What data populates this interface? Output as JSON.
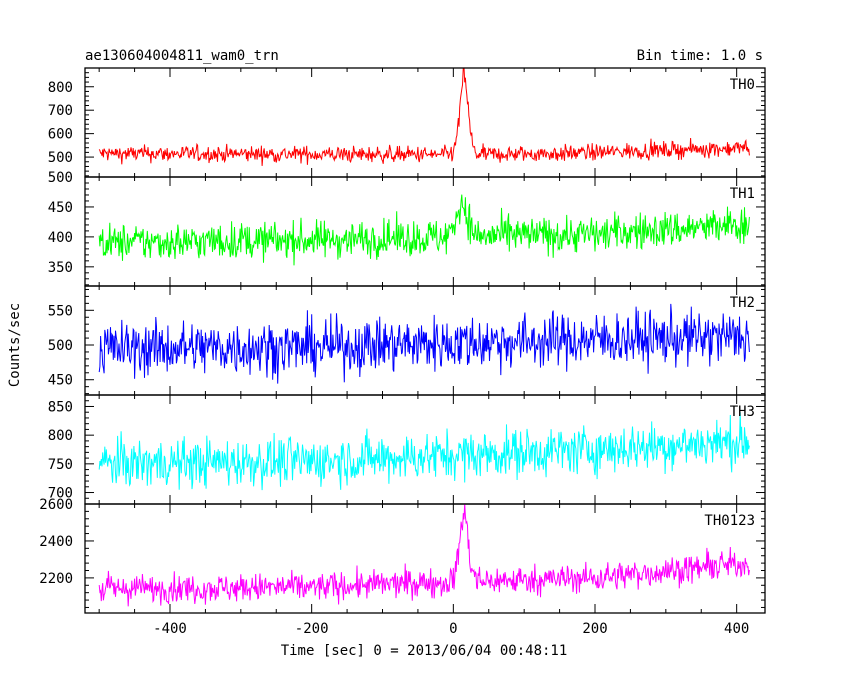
{
  "chart_data": {
    "type": "line",
    "title": "ae130604004811_wam0_trn",
    "subtitle": "Bin time: 1.0 s",
    "xlabel": "Time [sec] 0 = 2013/06/04 00:48:11",
    "ylabel": "Counts/sec",
    "xlim": [
      -520,
      440
    ],
    "x_ticks": [
      -400,
      -200,
      0,
      200,
      400
    ],
    "x_range": [
      -500,
      418
    ],
    "panels": [
      {
        "name": "TH0",
        "color": "#ff0000",
        "ylim": [
          415,
          880
        ],
        "y_ticks": [
          500,
          600,
          700,
          800
        ],
        "baseline": [
          [
            -500,
            515
          ],
          [
            -200,
            512
          ],
          [
            0,
            510
          ],
          [
            150,
            515
          ],
          [
            250,
            525
          ],
          [
            418,
            540
          ]
        ],
        "noise": 25,
        "spike": {
          "x": 15,
          "peak": 880,
          "width": 6
        }
      },
      {
        "name": "TH1",
        "color": "#00ff00",
        "ylim": [
          318,
          500
        ],
        "y_ticks": [
          350,
          400,
          450,
          500
        ],
        "baseline": [
          [
            -500,
            390
          ],
          [
            -200,
            395
          ],
          [
            0,
            400
          ],
          [
            200,
            405
          ],
          [
            418,
            420
          ]
        ],
        "noise": 22,
        "spike": {
          "x": 12,
          "peak": 465,
          "width": 8
        }
      },
      {
        "name": "TH2",
        "color": "#0000ff",
        "ylim": [
          428,
          585
        ],
        "y_ticks": [
          450,
          500,
          550
        ],
        "baseline": [
          [
            -500,
            495
          ],
          [
            -200,
            497
          ],
          [
            0,
            503
          ],
          [
            200,
            508
          ],
          [
            418,
            512
          ]
        ],
        "noise": 28,
        "spike": {
          "x": 0,
          "peak": 0,
          "width": 0
        }
      },
      {
        "name": "TH3",
        "color": "#00ffff",
        "ylim": [
          680,
          870
        ],
        "y_ticks": [
          700,
          750,
          800,
          850
        ],
        "baseline": [
          [
            -500,
            750
          ],
          [
            -200,
            755
          ],
          [
            0,
            765
          ],
          [
            200,
            775
          ],
          [
            418,
            790
          ]
        ],
        "noise": 30,
        "spike": {
          "x": 0,
          "peak": 0,
          "width": 0
        }
      },
      {
        "name": "TH0123",
        "color": "#ff00ff",
        "ylim": [
          2010,
          2600
        ],
        "y_ticks": [
          2200,
          2400,
          2600
        ],
        "baseline": [
          [
            -500,
            2140
          ],
          [
            -200,
            2150
          ],
          [
            0,
            2180
          ],
          [
            200,
            2200
          ],
          [
            418,
            2280
          ]
        ],
        "noise": 55,
        "spike": {
          "x": 15,
          "peak": 2600,
          "width": 6
        }
      }
    ]
  }
}
